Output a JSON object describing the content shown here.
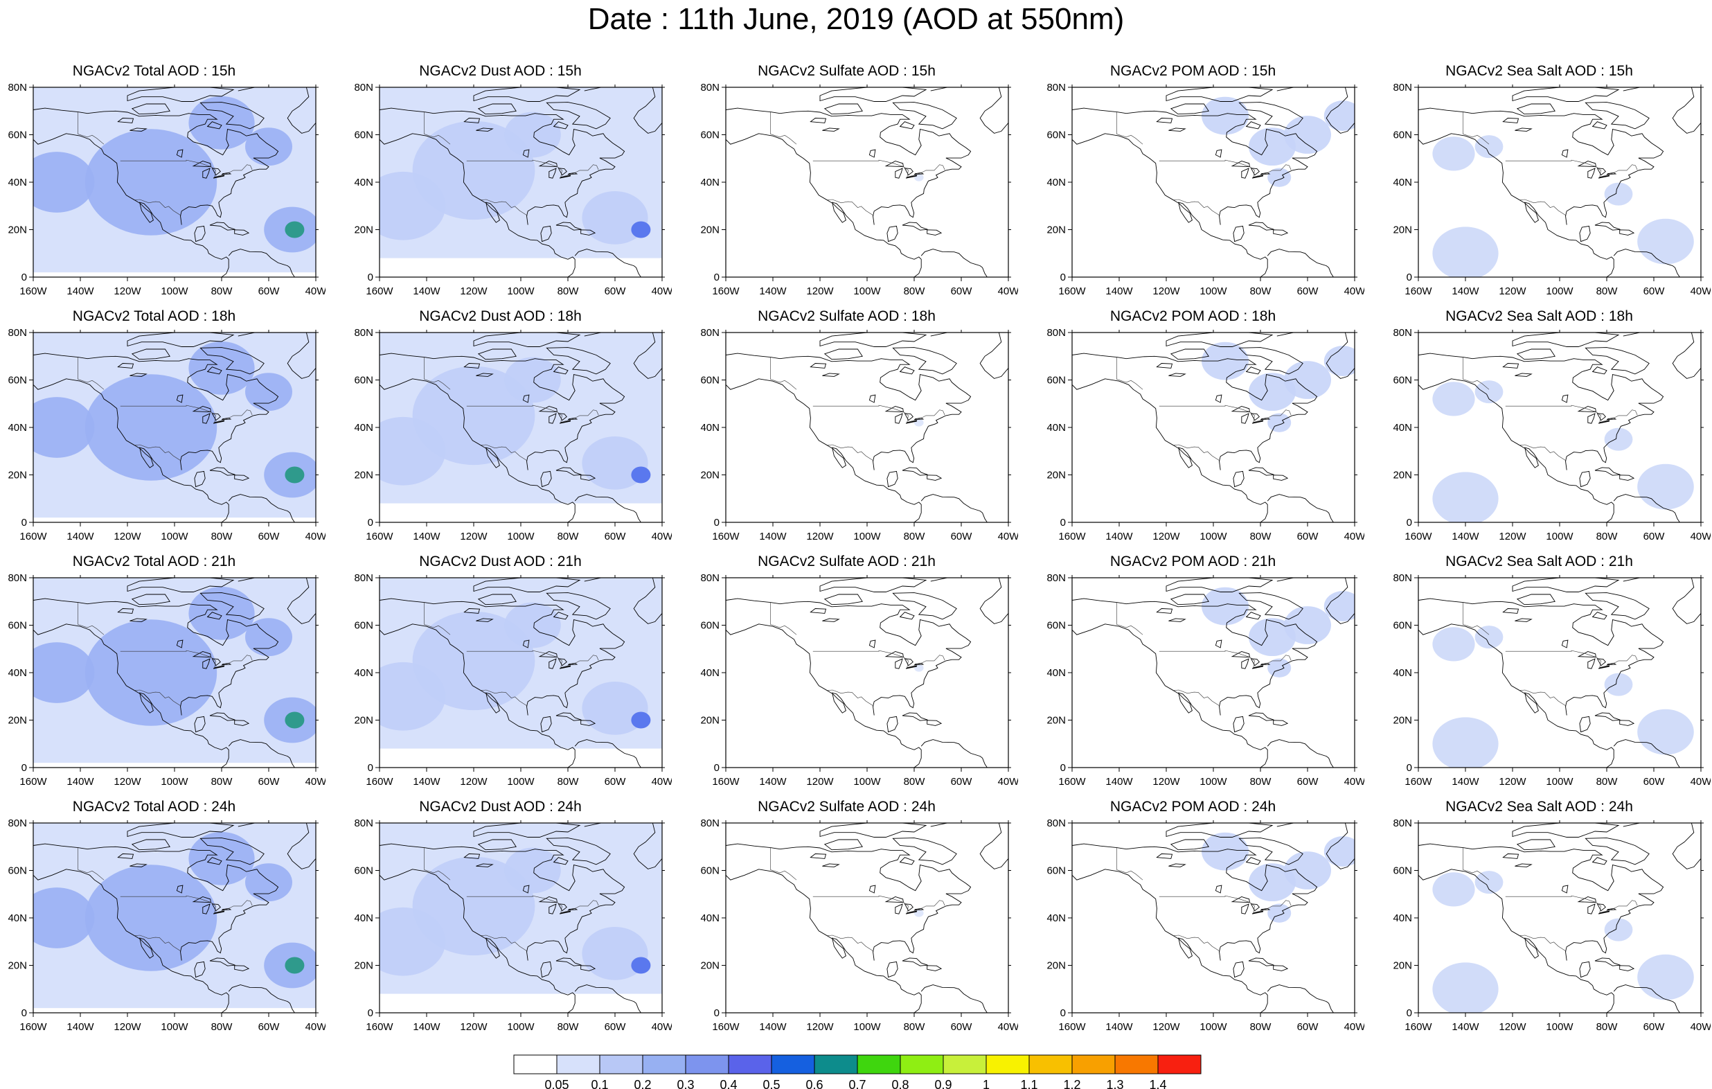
{
  "title": "Date : 11th June, 2019 (AOD at 550nm)",
  "species": [
    {
      "key": "total",
      "label": "NGACv2 Total AOD",
      "color": "#9ab0f4",
      "hot": "#2f9a8c"
    },
    {
      "key": "dust",
      "label": "NGACv2 Dust AOD",
      "color": "#c0cef8",
      "hot": "#5a78ee"
    },
    {
      "key": "sulfate",
      "label": "NGACv2 Sulfate AOD",
      "color": "#dce4fb",
      "hot": "#c6d3f8"
    },
    {
      "key": "pom",
      "label": "NGACv2 POM AOD",
      "color": "#c6d4f8",
      "hot": "#8fa6f2"
    },
    {
      "key": "seasalt",
      "label": "NGACv2 Sea Salt AOD",
      "color": "#ccd8f8",
      "hot": "#b4c6f6"
    }
  ],
  "hours": [
    "15h",
    "18h",
    "21h",
    "24h"
  ],
  "panel_titles": [
    [
      "NGACv2 Total AOD : 15h",
      "NGACv2 Dust AOD : 15h",
      "NGACv2 Sulfate AOD : 15h",
      "NGACv2 POM AOD : 15h",
      "NGACv2 Sea Salt AOD : 15h"
    ],
    [
      "NGACv2 Total AOD : 18h",
      "NGACv2 Dust AOD : 18h",
      "NGACv2 Sulfate AOD : 18h",
      "NGACv2 POM AOD : 18h",
      "NGACv2 Sea Salt AOD : 18h"
    ],
    [
      "NGACv2 Total AOD : 21h",
      "NGACv2 Dust AOD : 21h",
      "NGACv2 Sulfate AOD : 21h",
      "NGACv2 POM AOD : 21h",
      "NGACv2 Sea Salt AOD : 21h"
    ],
    [
      "NGACv2 Total AOD : 24h",
      "NGACv2 Dust AOD : 24h",
      "NGACv2 Sulfate AOD : 24h",
      "NGACv2 POM AOD : 24h",
      "NGACv2 Sea Salt  AOD : 24h"
    ]
  ],
  "lat_labels": [
    "0",
    "20N",
    "40N",
    "60N",
    "80N"
  ],
  "lon_labels": [
    "160W",
    "140W",
    "120W",
    "100W",
    "80W",
    "60W",
    "40W"
  ],
  "map_extent": {
    "lon": [
      -160,
      -40
    ],
    "lat": [
      0,
      80
    ]
  },
  "colorbar": {
    "colors": [
      "#ffffff",
      "#d7e1fb",
      "#b8c8f6",
      "#97b0f2",
      "#7d94ee",
      "#5a63ea",
      "#1560e0",
      "#0d8c8c",
      "#3fd60e",
      "#8fee13",
      "#c8f03a",
      "#f8f200",
      "#f8c000",
      "#f8a000",
      "#f87800",
      "#f82010"
    ],
    "labels": [
      "0.05",
      "0.1",
      "0.2",
      "0.3",
      "0.4",
      "0.5",
      "0.6",
      "0.7",
      "0.8",
      "0.9",
      "1",
      "1.1",
      "1.2",
      "1.3",
      "1.4"
    ]
  }
}
